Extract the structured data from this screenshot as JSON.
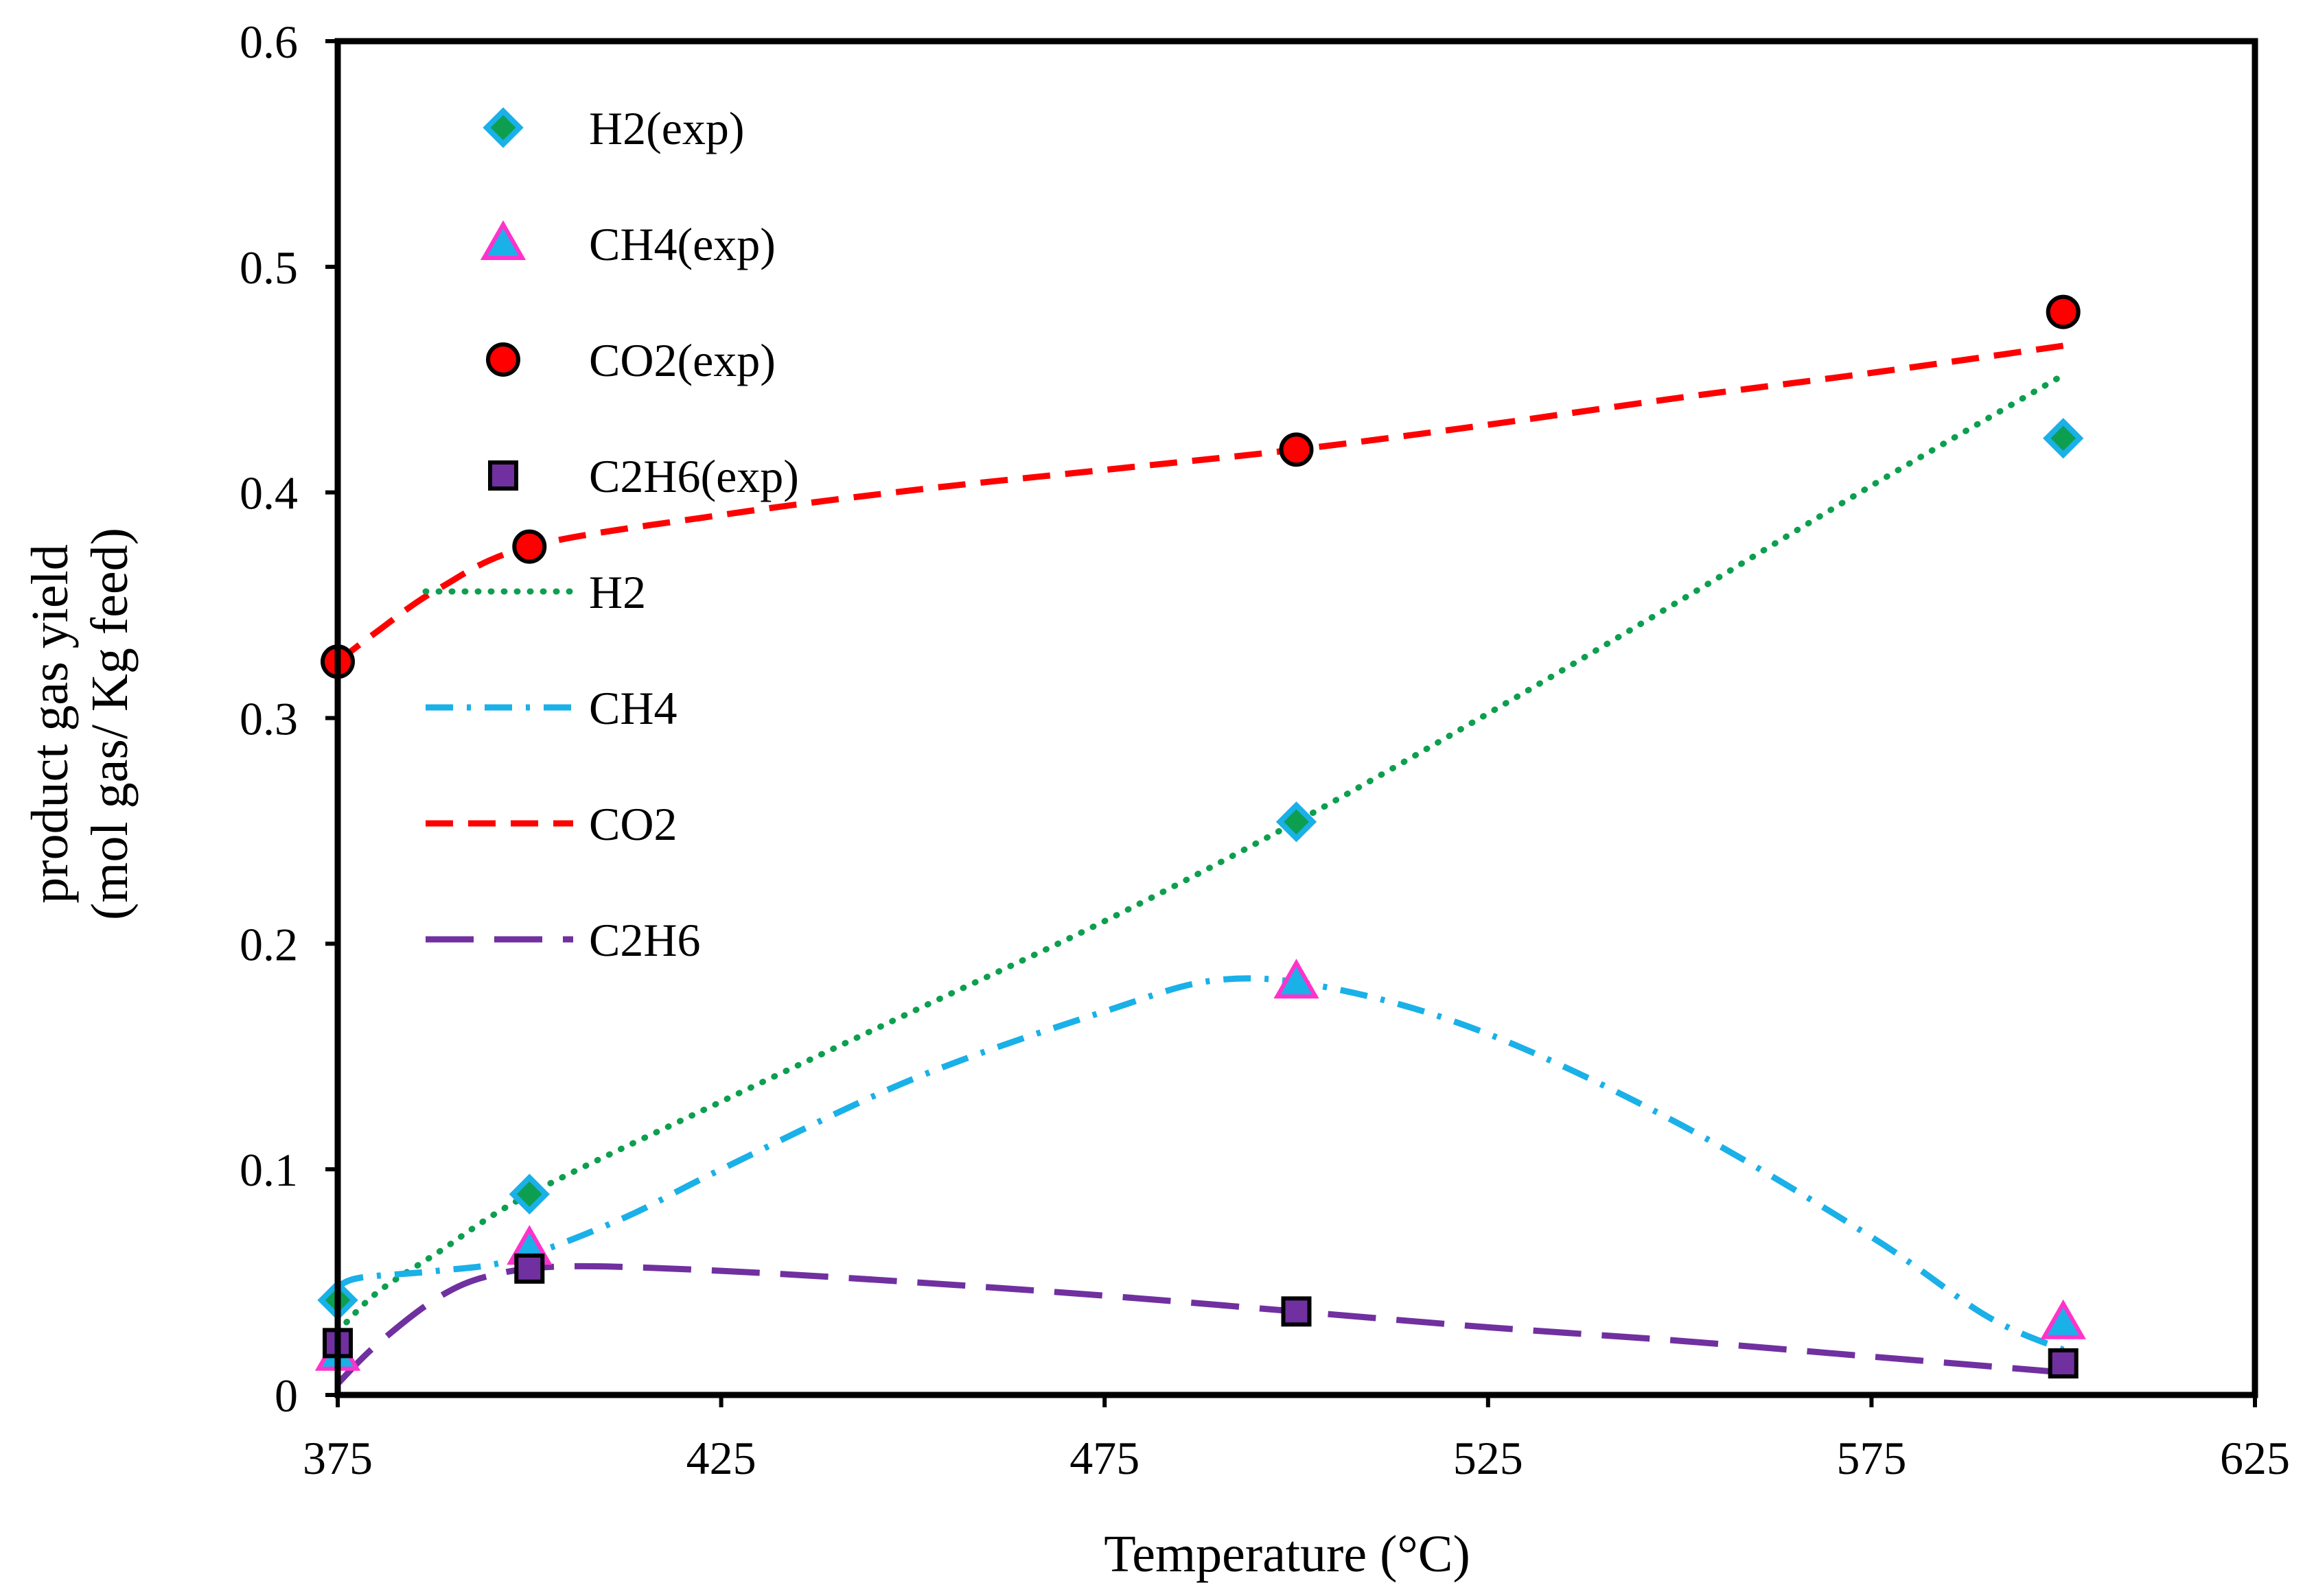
{
  "chart_data": {
    "type": "line",
    "title": "",
    "xlabel": "Temperature (°C)",
    "ylabel_lines": [
      "product gas yield",
      "(mol gas/ Kg feed)"
    ],
    "xlim": [
      375,
      625
    ],
    "ylim": [
      0,
      0.6
    ],
    "x_ticks": [
      375,
      425,
      475,
      525,
      575,
      625
    ],
    "y_ticks": [
      0,
      0.1,
      0.2,
      0.3,
      0.4,
      0.5,
      0.6
    ],
    "y_tick_labels": [
      "0",
      "0.1",
      "0.2",
      "0.3",
      "0.4",
      "0.5",
      "0.6"
    ],
    "grid": false,
    "legend_position": "top-left inside",
    "experimental": [
      {
        "name": "H2(exp)",
        "marker": "diamond",
        "fill": "#0d9f4f",
        "stroke": "#1ab0e8",
        "x": [
          375,
          400,
          500,
          600
        ],
        "y": [
          0.042,
          0.089,
          0.254,
          0.424
        ]
      },
      {
        "name": "CH4(exp)",
        "marker": "triangle",
        "fill": "#1ab0e8",
        "stroke": "#ff33cc",
        "x": [
          375,
          400,
          500,
          600
        ],
        "y": [
          0.018,
          0.065,
          0.183,
          0.032
        ]
      },
      {
        "name": "CO2(exp)",
        "marker": "circle",
        "fill": "#ff0000",
        "stroke": "#000000",
        "x": [
          375,
          400,
          500,
          600
        ],
        "y": [
          0.325,
          0.376,
          0.419,
          0.48
        ]
      },
      {
        "name": "C2H6(exp)",
        "marker": "square",
        "fill": "#7030a0",
        "stroke": "#000000",
        "x": [
          375,
          400,
          500,
          600
        ],
        "y": [
          0.023,
          0.056,
          0.037,
          0.014
        ]
      }
    ],
    "model": [
      {
        "name": "H2",
        "color": "#0d9f4f",
        "dash": "round-dot",
        "x": [
          375,
          380,
          388,
          400,
          425,
          450,
          475,
          500,
          525,
          550,
          575,
          600
        ],
        "y": [
          0.028,
          0.045,
          0.063,
          0.089,
          0.13,
          0.17,
          0.21,
          0.254,
          0.302,
          0.352,
          0.403,
          0.452
        ]
      },
      {
        "name": "CH4",
        "color": "#1ab0e8",
        "dash": "dash-dot",
        "x": [
          375,
          378,
          388,
          398,
          412,
          425,
          450,
          475,
          490,
          505,
          525,
          550,
          575,
          590,
          600
        ],
        "y": [
          0.048,
          0.052,
          0.055,
          0.06,
          0.078,
          0.1,
          0.14,
          0.17,
          0.184,
          0.18,
          0.16,
          0.12,
          0.07,
          0.035,
          0.02
        ]
      },
      {
        "name": "CO2",
        "color": "#ff0000",
        "dash": "dash",
        "x": [
          375,
          380,
          388,
          400,
          425,
          450,
          475,
          500,
          525,
          550,
          575,
          600
        ],
        "y": [
          0.325,
          0.338,
          0.357,
          0.376,
          0.39,
          0.401,
          0.41,
          0.419,
          0.43,
          0.442,
          0.453,
          0.465
        ]
      },
      {
        "name": "C2H6",
        "color": "#7030a0",
        "dash": "long-dash",
        "x": [
          375,
          380,
          388,
          395,
          405,
          425,
          450,
          475,
          500,
          525,
          550,
          575,
          600
        ],
        "y": [
          0.005,
          0.022,
          0.043,
          0.053,
          0.057,
          0.055,
          0.05,
          0.044,
          0.037,
          0.03,
          0.024,
          0.017,
          0.01
        ]
      }
    ]
  }
}
